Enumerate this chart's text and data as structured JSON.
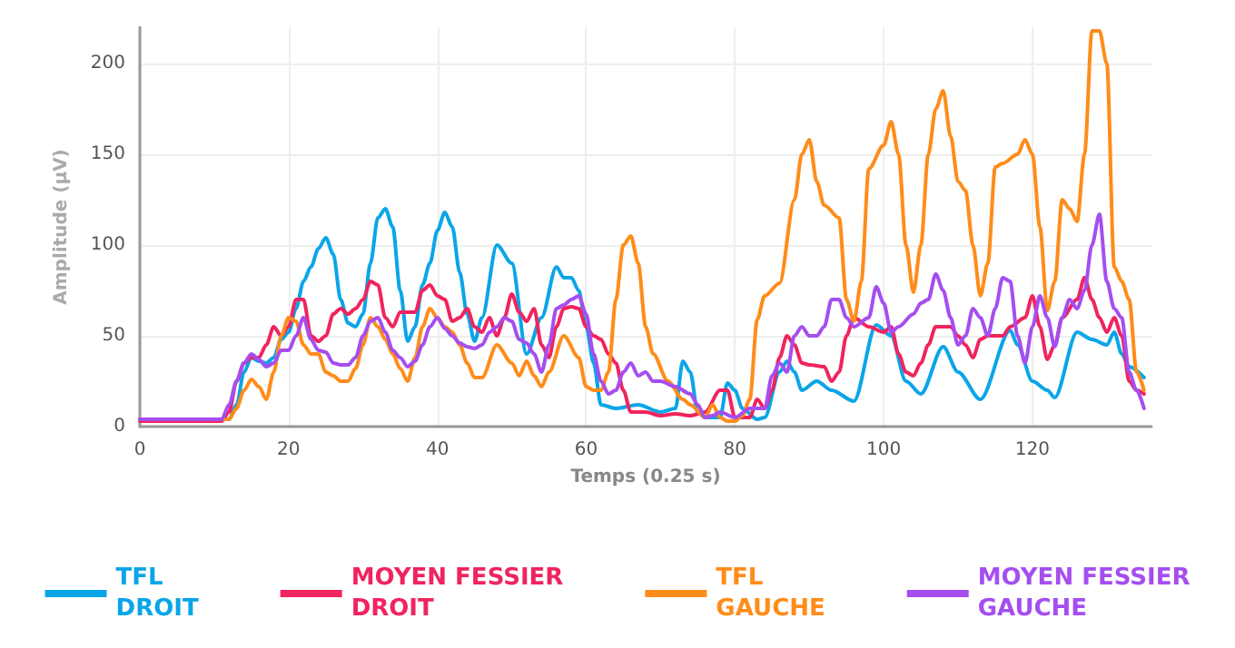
{
  "chart_data": {
    "type": "line",
    "xlabel": "Temps (0.25 s)",
    "ylabel": "Amplitude (µV)",
    "xlim": [
      0,
      136
    ],
    "ylim": [
      0,
      220
    ],
    "xticks": [
      0,
      20,
      40,
      60,
      80,
      100,
      120
    ],
    "yticks": [
      0,
      50,
      100,
      150,
      200
    ],
    "grid": true,
    "legend": "bottom",
    "marker": "none",
    "line_style": "solid",
    "series": [
      {
        "name": "TFL DROIT",
        "color": "#0aa5e8",
        "x": [
          0,
          11,
          12,
          13,
          14,
          15,
          16,
          17,
          18,
          19,
          20,
          21,
          22,
          23,
          24,
          25,
          26,
          27,
          28,
          29,
          30,
          31,
          32,
          33,
          34,
          35,
          36,
          37,
          38,
          39,
          40,
          41,
          42,
          43,
          44,
          45,
          46,
          48,
          50,
          52,
          54,
          56,
          57,
          58,
          59,
          60,
          61,
          62,
          64,
          67,
          70,
          72,
          73,
          74,
          75,
          76,
          78,
          79,
          80,
          81,
          83,
          84,
          86,
          87,
          88,
          89,
          91,
          93,
          96,
          99,
          101,
          103,
          105,
          108,
          110,
          113,
          117,
          118,
          120,
          122,
          123,
          126,
          128,
          130,
          131,
          132,
          133,
          135
        ],
        "values": [
          4,
          4,
          4,
          12,
          30,
          38,
          36,
          35,
          38,
          48,
          52,
          65,
          80,
          88,
          98,
          104,
          95,
          70,
          57,
          55,
          62,
          90,
          115,
          120,
          110,
          75,
          47,
          55,
          78,
          90,
          108,
          118,
          110,
          85,
          62,
          47,
          60,
          100,
          90,
          40,
          60,
          88,
          82,
          82,
          75,
          55,
          35,
          12,
          10,
          12,
          8,
          10,
          36,
          30,
          8,
          5,
          5,
          24,
          20,
          10,
          4,
          5,
          30,
          36,
          30,
          20,
          25,
          20,
          14,
          56,
          50,
          25,
          18,
          44,
          30,
          15,
          53,
          45,
          25,
          20,
          16,
          52,
          48,
          45,
          52,
          40,
          33,
          27
        ]
      },
      {
        "name": "MOYEN FESSIER DROIT",
        "color": "#f0245e",
        "x": [
          0,
          11,
          12,
          13,
          14,
          15,
          16,
          17,
          18,
          19,
          20,
          21,
          22,
          23,
          24,
          25,
          26,
          27,
          28,
          29,
          30,
          31,
          32,
          33,
          34,
          35,
          36,
          37,
          38,
          39,
          40,
          41,
          42,
          43,
          44,
          45,
          46,
          47,
          48,
          49,
          50,
          51,
          52,
          53,
          54,
          55,
          56,
          57,
          58,
          59,
          60,
          61,
          62,
          63,
          64,
          65,
          66,
          68,
          70,
          72,
          74,
          76,
          78,
          79,
          80,
          82,
          83,
          84,
          85,
          86,
          87,
          88,
          89,
          90,
          92,
          93,
          94,
          95,
          96,
          98,
          100,
          101,
          102,
          103,
          104,
          105,
          106,
          107,
          109,
          110,
          111,
          112,
          113,
          114,
          116,
          117,
          119,
          120,
          121,
          122,
          123,
          124,
          126,
          127,
          128,
          129,
          130,
          131,
          132,
          133,
          134,
          135
        ],
        "values": [
          3,
          3,
          8,
          25,
          35,
          38,
          38,
          45,
          55,
          50,
          55,
          70,
          70,
          50,
          47,
          50,
          62,
          65,
          62,
          65,
          70,
          80,
          78,
          60,
          55,
          63,
          63,
          63,
          75,
          78,
          72,
          70,
          58,
          60,
          65,
          55,
          52,
          60,
          50,
          60,
          73,
          63,
          58,
          65,
          45,
          38,
          55,
          65,
          66,
          65,
          55,
          50,
          48,
          40,
          35,
          20,
          8,
          8,
          6,
          7,
          6,
          8,
          20,
          20,
          5,
          5,
          15,
          10,
          20,
          38,
          50,
          45,
          35,
          34,
          33,
          25,
          30,
          50,
          60,
          55,
          52,
          55,
          40,
          30,
          28,
          35,
          45,
          55,
          55,
          50,
          45,
          38,
          48,
          50,
          50,
          55,
          60,
          72,
          55,
          37,
          45,
          60,
          70,
          82,
          70,
          60,
          52,
          60,
          50,
          25,
          20,
          18
        ]
      },
      {
        "name": "TFL GAUCHE",
        "color": "#ff8c1a",
        "x": [
          0,
          12,
          13,
          14,
          15,
          16,
          17,
          18,
          19,
          20,
          21,
          22,
          23,
          24,
          25,
          26,
          27,
          28,
          29,
          30,
          31,
          32,
          33,
          34,
          35,
          36,
          37,
          38,
          39,
          40,
          41,
          42,
          43,
          44,
          45,
          46,
          48,
          50,
          51,
          52,
          53,
          54,
          55,
          57,
          59,
          60,
          61,
          62,
          63,
          64,
          65,
          66,
          67,
          68,
          69,
          71,
          73,
          74,
          76,
          77,
          78,
          79,
          80,
          81,
          82,
          83,
          84,
          86,
          88,
          89,
          90,
          91,
          92,
          94,
          95,
          96,
          97,
          98,
          100,
          101,
          102,
          103,
          104,
          105,
          106,
          107,
          108,
          109,
          110,
          111,
          112,
          113,
          114,
          115,
          116,
          118,
          119,
          120,
          121,
          122,
          123,
          124,
          125,
          126,
          127,
          128,
          129,
          130,
          131,
          132,
          133,
          134,
          135
        ],
        "values": [
          4,
          4,
          10,
          20,
          26,
          22,
          15,
          30,
          50,
          60,
          58,
          45,
          40,
          40,
          30,
          28,
          25,
          25,
          32,
          45,
          60,
          55,
          48,
          40,
          32,
          25,
          38,
          55,
          65,
          60,
          55,
          52,
          45,
          35,
          27,
          27,
          45,
          35,
          28,
          36,
          28,
          22,
          30,
          50,
          38,
          22,
          20,
          20,
          30,
          70,
          100,
          105,
          90,
          55,
          40,
          25,
          15,
          12,
          5,
          12,
          5,
          3,
          3,
          6,
          15,
          59,
          72,
          79,
          125,
          150,
          158,
          135,
          122,
          115,
          70,
          58,
          80,
          142,
          155,
          168,
          150,
          100,
          74,
          100,
          150,
          175,
          185,
          160,
          135,
          130,
          100,
          72,
          90,
          143,
          145,
          150,
          158,
          150,
          110,
          64,
          80,
          125,
          120,
          113,
          150,
          218,
          218,
          200,
          88,
          80,
          70,
          30,
          20
        ]
      },
      {
        "name": "MOYEN FESSIER GAUCHE",
        "color": "#a54ef0",
        "x": [
          0,
          11,
          12,
          13,
          14,
          15,
          16,
          17,
          18,
          19,
          20,
          21,
          22,
          23,
          24,
          25,
          26,
          27,
          28,
          29,
          30,
          31,
          32,
          33,
          34,
          35,
          36,
          37,
          38,
          39,
          40,
          41,
          42,
          43,
          44,
          45,
          46,
          47,
          48,
          49,
          50,
          51,
          52,
          53,
          54,
          55,
          56,
          57,
          58,
          59,
          60,
          61,
          62,
          63,
          64,
          65,
          66,
          67,
          68,
          69,
          70,
          72,
          74,
          75,
          76,
          77,
          78,
          80,
          82,
          84,
          85,
          86,
          87,
          88,
          89,
          90,
          91,
          92,
          93,
          94,
          95,
          96,
          98,
          99,
          100,
          101,
          102,
          104,
          105,
          106,
          107,
          108,
          109,
          110,
          111,
          112,
          113,
          114,
          115,
          116,
          117,
          118,
          119,
          120,
          121,
          122,
          123,
          124,
          125,
          126,
          127,
          128,
          129,
          130,
          131,
          132,
          133,
          134,
          135
        ],
        "values": [
          4,
          4,
          12,
          25,
          35,
          40,
          37,
          33,
          35,
          42,
          42,
          50,
          60,
          48,
          42,
          41,
          35,
          34,
          34,
          38,
          50,
          58,
          60,
          52,
          42,
          38,
          33,
          36,
          45,
          55,
          60,
          54,
          50,
          46,
          44,
          43,
          45,
          52,
          55,
          60,
          58,
          48,
          46,
          40,
          30,
          45,
          65,
          67,
          70,
          72,
          62,
          40,
          25,
          18,
          20,
          30,
          35,
          28,
          30,
          25,
          25,
          22,
          18,
          12,
          5,
          6,
          8,
          5,
          10,
          10,
          28,
          35,
          30,
          50,
          55,
          50,
          50,
          55,
          70,
          70,
          60,
          55,
          60,
          77,
          68,
          52,
          55,
          62,
          68,
          70,
          84,
          75,
          60,
          45,
          50,
          65,
          60,
          50,
          65,
          82,
          80,
          50,
          35,
          55,
          72,
          60,
          44,
          60,
          70,
          65,
          75,
          100,
          117,
          80,
          65,
          60,
          30,
          20,
          10
        ]
      }
    ]
  }
}
